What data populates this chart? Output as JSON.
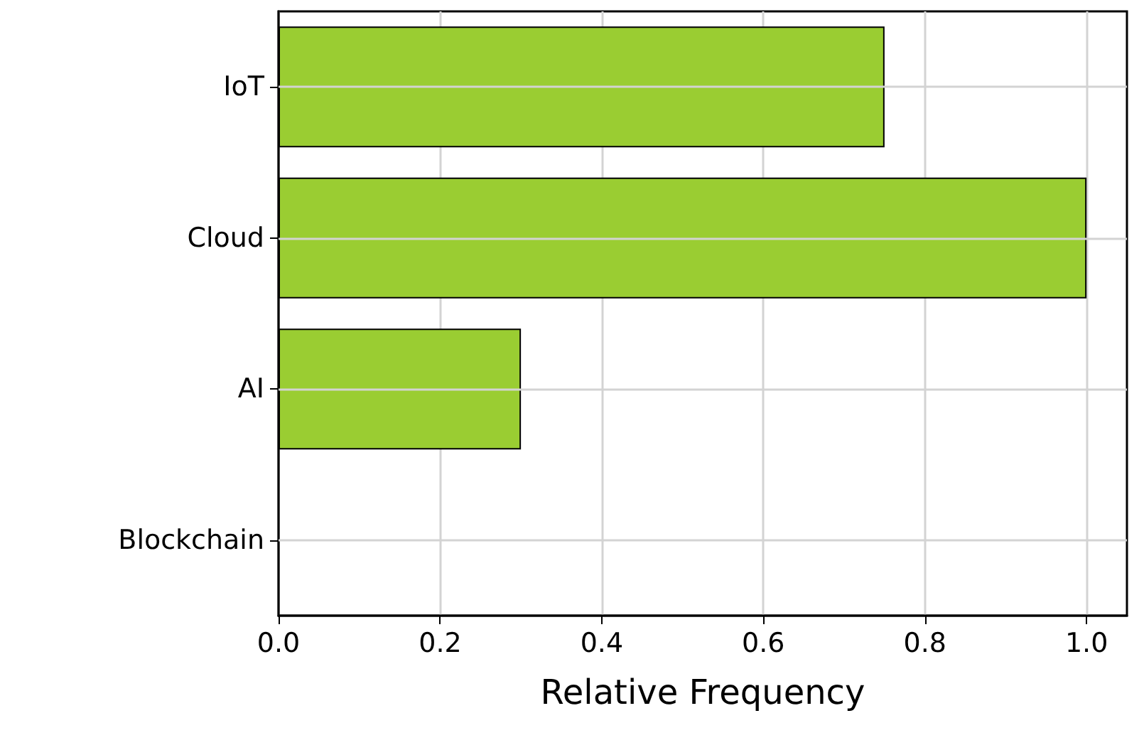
{
  "chart_data": {
    "type": "bar",
    "orientation": "horizontal",
    "xlabel": "Relative Frequency",
    "categories": [
      "IoT",
      "Cloud",
      "AI",
      "Blockchain"
    ],
    "values": [
      0.75,
      1.0,
      0.3,
      0
    ],
    "color": "#9acd32",
    "xlim": [
      0,
      1.05
    ],
    "xticks": [
      {
        "value": 0,
        "label": "0.0"
      },
      {
        "value": 0.2,
        "label": "0.2"
      },
      {
        "value": 0.4,
        "label": "0.4"
      },
      {
        "value": 0.6,
        "label": "0.6"
      },
      {
        "value": 0.8,
        "label": "0.8"
      },
      {
        "value": 1.0,
        "label": "1.0"
      }
    ],
    "grid": true
  }
}
